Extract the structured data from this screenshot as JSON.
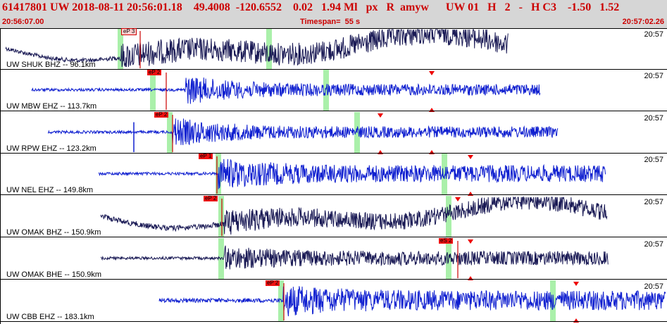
{
  "header": {
    "title": "61417801 UW 2018-08-11 20:56:01.18    49.4008  -120.6552    0.02   1.94 Ml   px   R  amyw      UW 01   H   2   -   H C3    -1.50   1.52",
    "start_time": "20:56:07.00",
    "timespan": "Timespan=  55 s",
    "end_time": "20:57:02.26"
  },
  "colors": {
    "header_bg": "#d6d6d6",
    "header_text": "#cc0000",
    "trace_dark": "#1a1a55",
    "trace_blue": "#1020d0",
    "window_green": "#aaf0aa",
    "pick_red": "#ee1111",
    "pick_line_red": "#cc0000",
    "marker_red": "#ee0000"
  },
  "traces": [
    {
      "label": "UW SHUK BHZ -- 96.1km",
      "time": "20:57",
      "color": "dark",
      "pick": "eP 3",
      "pick_style": "pink"
    },
    {
      "label": "UW MBW EHZ -- 113.7km",
      "time": "20:57",
      "color": "blue",
      "pick": "eP 2",
      "pick_style": "red"
    },
    {
      "label": "UW RPW EHZ -- 123.2km",
      "time": "20:57",
      "color": "blue",
      "pick": "eP 2",
      "pick_style": "red"
    },
    {
      "label": "UW NEL EHZ -- 149.8km",
      "time": "20:57",
      "color": "blue",
      "pick": "eP 1",
      "pick_style": "red"
    },
    {
      "label": "UW OMAK BHZ -- 150.9km",
      "time": "20:57",
      "color": "dark",
      "pick": "eP 2",
      "pick_style": "red"
    },
    {
      "label": "UW OMAK BHE -- 150.9km",
      "time": "20:57",
      "color": "dark",
      "pick": "eS 2",
      "pick_style": "red"
    },
    {
      "label": "UW CBB EHZ -- 183.1km",
      "time": "20:57",
      "color": "blue",
      "pick": "eP 2",
      "pick_style": "red"
    }
  ]
}
